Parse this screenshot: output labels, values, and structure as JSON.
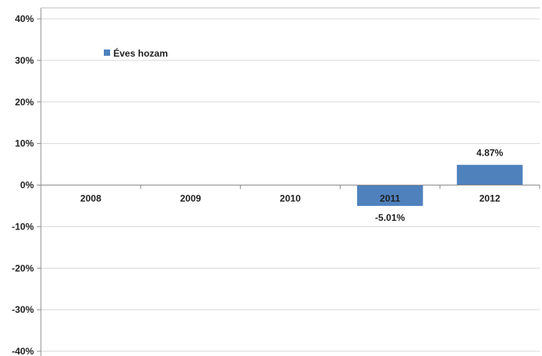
{
  "chart_data": {
    "type": "bar",
    "categories": [
      "2008",
      "2009",
      "2010",
      "2011",
      "2012"
    ],
    "series": [
      {
        "name": "Éves hozam",
        "values": [
          null,
          null,
          null,
          -5.01,
          4.87
        ],
        "data_labels": [
          "",
          "",
          "",
          "-5.01%",
          "4.87%"
        ],
        "color": "#4f81bd"
      }
    ],
    "ylim": [
      -40,
      40
    ],
    "yticks": [
      40,
      30,
      20,
      10,
      0,
      -10,
      -20,
      -30,
      -40
    ],
    "ytick_labels": [
      "40%",
      "30%",
      "20%",
      "10%",
      "0%",
      "-10%",
      "-20%",
      "-30%",
      "-40%"
    ],
    "title": "",
    "xlabel": "",
    "ylabel": "",
    "grid": true,
    "legend_position": "top-left"
  }
}
